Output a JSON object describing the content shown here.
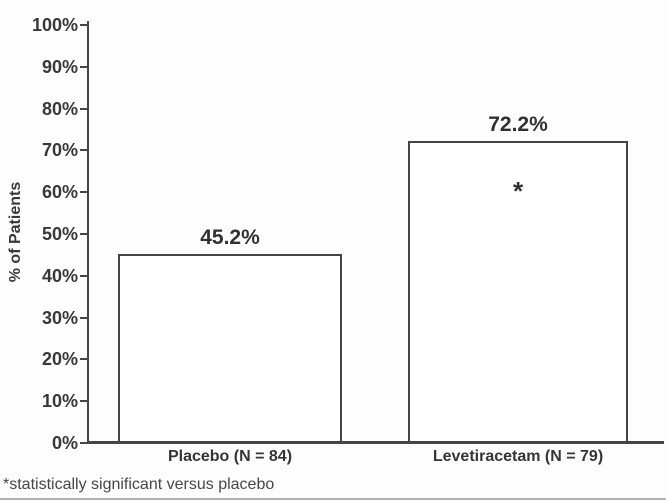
{
  "chart_data": {
    "type": "bar",
    "title": "",
    "ylabel": "% of Patients",
    "xlabel": "",
    "categories": [
      "Placebo (N = 84)",
      "Levetiracetam (N = 79)"
    ],
    "values": [
      45.2,
      72.2
    ],
    "value_labels": [
      "45.2%",
      "72.2%"
    ],
    "bar_annotations": [
      "",
      "*"
    ],
    "ylim": [
      0,
      100
    ],
    "ytick_step": 10,
    "ytick_labels": [
      "0%",
      "10%",
      "20%",
      "30%",
      "40%",
      "50%",
      "60%",
      "70%",
      "80%",
      "90%",
      "100%"
    ],
    "grid": false,
    "legend": "none",
    "bar_fill": "#ffffff",
    "bar_border_color": "#454545",
    "axis_color": "#454545",
    "footnote": "*statistically significant versus placebo"
  }
}
